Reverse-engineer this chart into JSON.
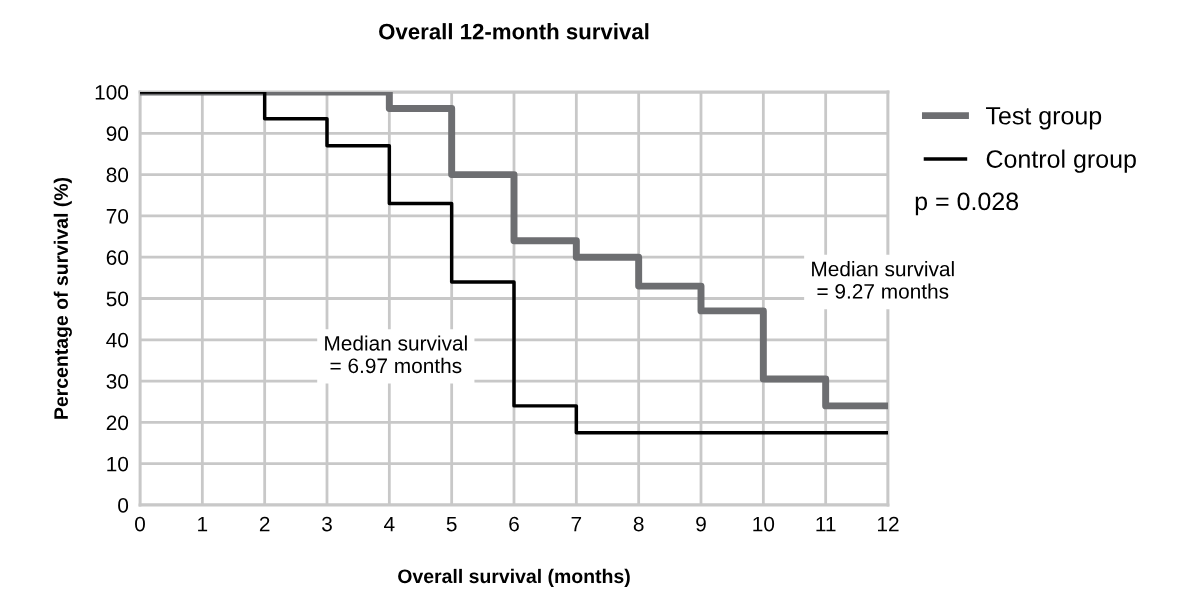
{
  "chart_data": {
    "type": "step",
    "title": "Overall 12-month survival",
    "xlabel": "Overall survival (months)",
    "ylabel": "Percentage of survival (%)",
    "series": [
      {
        "name": "Test group",
        "color": "#6d6e71",
        "x": [
          0,
          4,
          5,
          6,
          7,
          8,
          9,
          10,
          11,
          12
        ],
        "values": [
          100,
          96,
          80,
          64,
          60,
          53,
          47,
          30.5,
          24,
          24
        ]
      },
      {
        "name": "Control group",
        "color": "#000000",
        "x": [
          0,
          2,
          3,
          4,
          5,
          6,
          7,
          12
        ],
        "values": [
          100,
          93.5,
          87,
          73,
          54,
          24,
          17.5,
          17.5
        ]
      }
    ],
    "xlim": [
      0,
      12
    ],
    "xticks": [
      0,
      1,
      2,
      3,
      4,
      5,
      6,
      7,
      8,
      9,
      10,
      11,
      12
    ],
    "ylim": [
      0,
      100
    ],
    "yticks": [
      0,
      10,
      20,
      30,
      40,
      50,
      60,
      70,
      80,
      90,
      100
    ],
    "grid": true,
    "legend": "top right",
    "annotations": [
      "Median survival\n= 6.97 months",
      "Median survival\n= 9.27 months",
      "p = 0.028"
    ]
  }
}
